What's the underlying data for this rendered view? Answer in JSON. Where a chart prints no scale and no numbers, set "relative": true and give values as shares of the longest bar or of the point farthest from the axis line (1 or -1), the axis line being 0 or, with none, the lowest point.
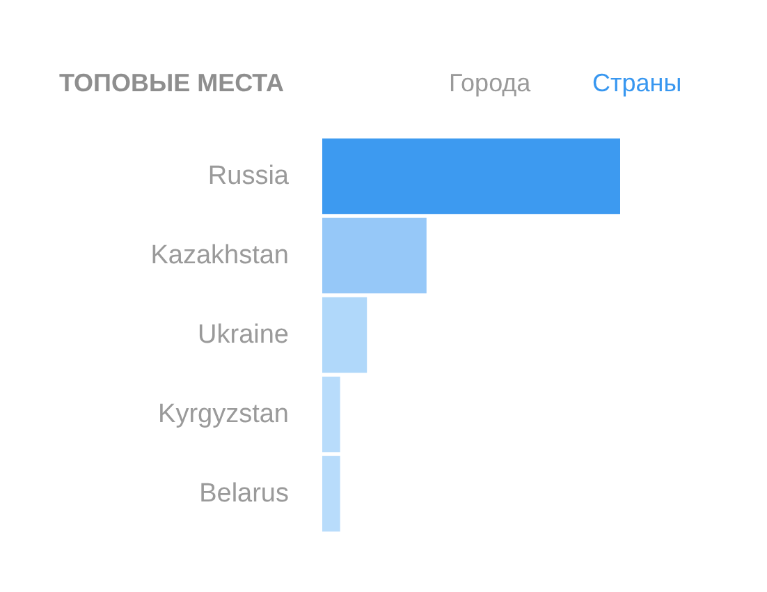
{
  "chart_data": {
    "type": "bar",
    "orientation": "horizontal",
    "relative": true,
    "title": "ТОПОВЫЕ МЕСТА",
    "annotations": [
      "Города",
      "Страны"
    ],
    "categories": [
      "Russia",
      "Kazakhstan",
      "Ukraine",
      "Kyrgyzstan",
      "Belarus"
    ],
    "values": [
      1,
      0.35,
      0.15,
      0.06,
      0.06
    ],
    "colors": [
      "#3d9af0",
      "#96c8f8",
      "#b0d8fa",
      "#b8dcfb",
      "#b8dcfb"
    ]
  }
}
